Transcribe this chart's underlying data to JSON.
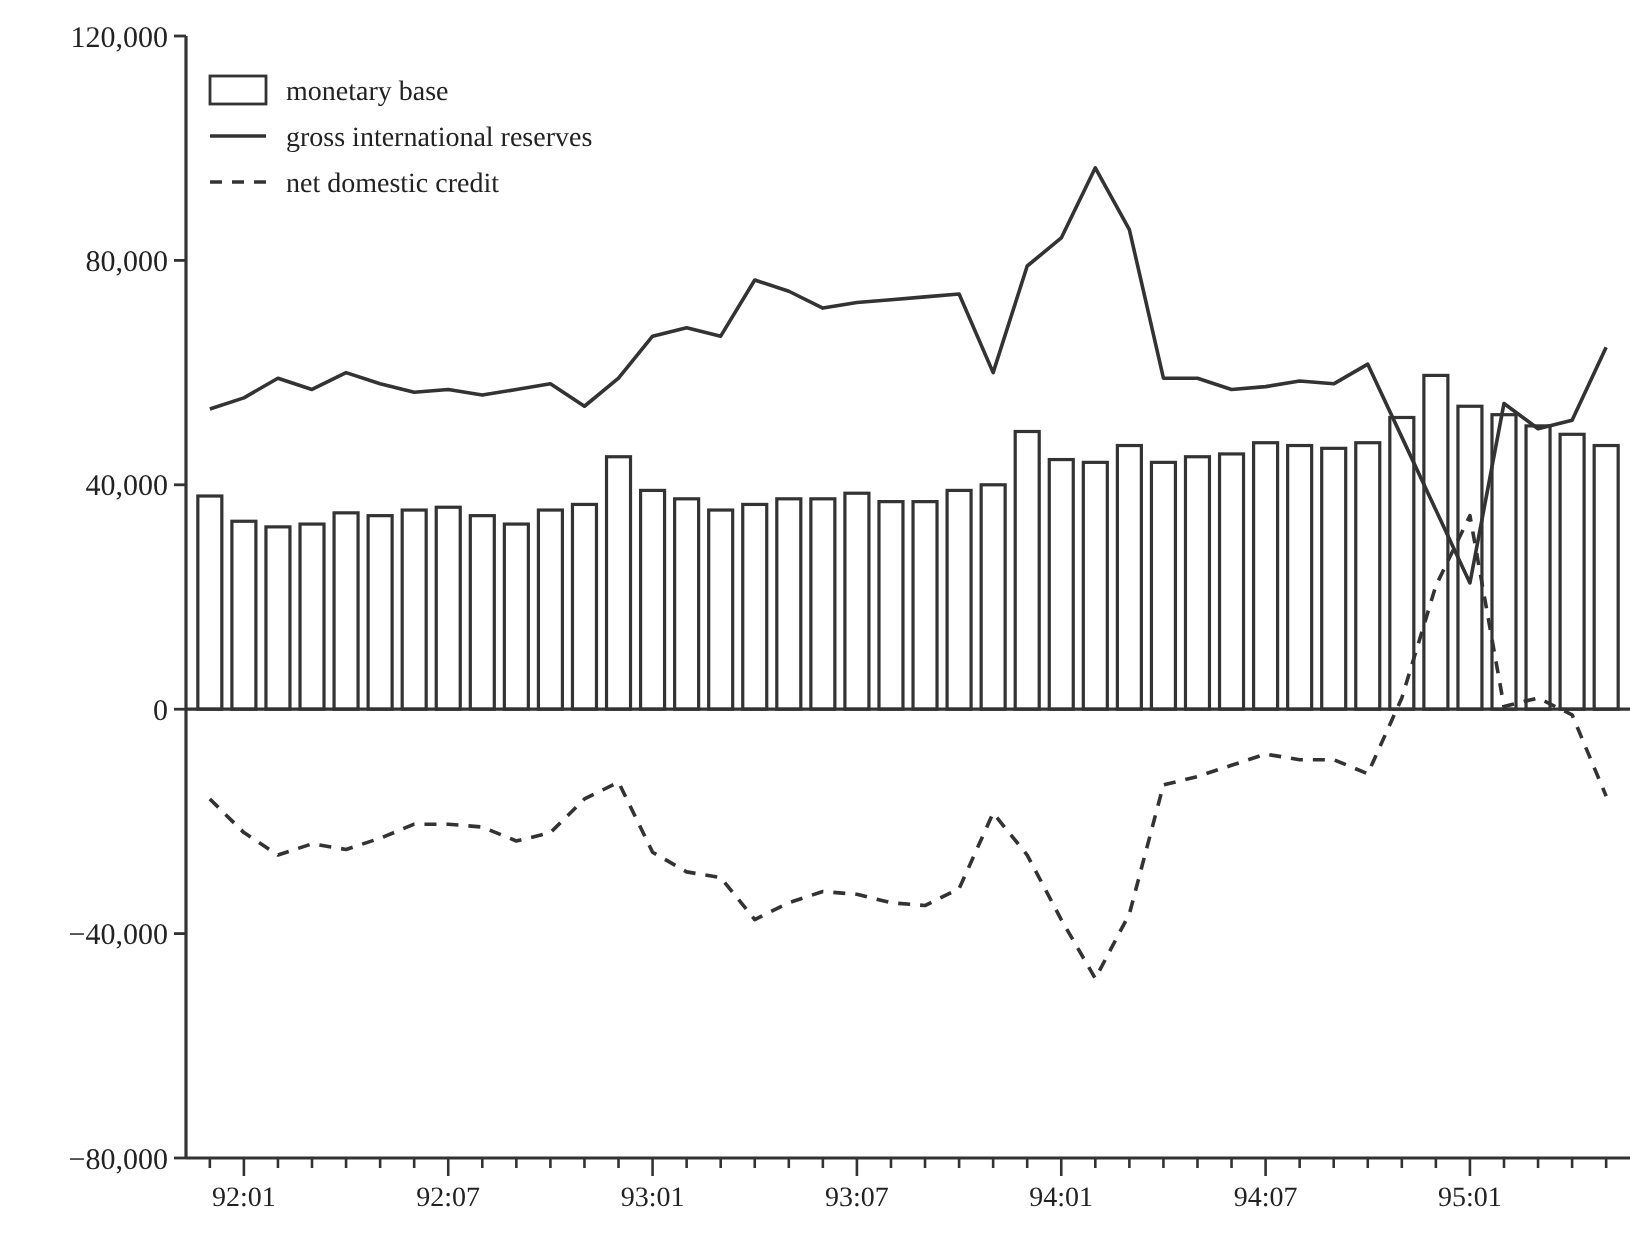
{
  "chart_data": {
    "type": "bar",
    "categories": [
      null,
      "92:01",
      null,
      null,
      null,
      null,
      null,
      "92:07",
      null,
      null,
      null,
      null,
      null,
      "93:01",
      null,
      null,
      null,
      null,
      null,
      "93:07",
      null,
      null,
      null,
      null,
      null,
      "94:01",
      null,
      null,
      null,
      null,
      null,
      "94:07",
      null,
      null,
      null,
      null,
      null,
      "95:01",
      null,
      null,
      null,
      null
    ],
    "series": [
      {
        "name": "monetary base",
        "color": "#333333",
        "values": [
          38000,
          33500,
          32500,
          33000,
          35000,
          34500,
          35500,
          36000,
          34500,
          33000,
          35500,
          36500,
          45000,
          39000,
          37500,
          35500,
          36500,
          37500,
          37500,
          38500,
          37000,
          37000,
          39000,
          40000,
          49500,
          44500,
          44000,
          47000,
          44000,
          45000,
          45500,
          47500,
          47000,
          46500,
          47500,
          52000,
          59500,
          54000,
          52500,
          50500,
          49000,
          47000
        ]
      },
      {
        "name": "gross international reserves",
        "type": "line",
        "line_style": "solid",
        "color": "#333333",
        "values": [
          53500,
          55500,
          59000,
          57000,
          60000,
          58000,
          56500,
          57000,
          56000,
          57000,
          58000,
          54000,
          59000,
          66500,
          68000,
          66500,
          76500,
          74500,
          71500,
          72500,
          73000,
          73500,
          74000,
          60000,
          79000,
          84000,
          96500,
          85500,
          59000,
          59000,
          57000,
          57500,
          58500,
          58000,
          61500,
          48500,
          35500,
          22500,
          54500,
          50000,
          51500,
          64500
        ]
      },
      {
        "name": "net domestic credit",
        "type": "line",
        "line_style": "dashed",
        "color": "#333333",
        "values": [
          -16000,
          -22000,
          -26000,
          -24000,
          -25000,
          -23000,
          -20500,
          -20500,
          -21000,
          -23500,
          -22000,
          -16000,
          -13000,
          -25500,
          -29000,
          -30000,
          -37500,
          -34500,
          -32500,
          -33000,
          -34500,
          -35000,
          -32000,
          -18500,
          -26000,
          -37500,
          -48000,
          -36500,
          -13500,
          -12000,
          -10000,
          -8000,
          -9000,
          -9000,
          -11500,
          2000,
          22000,
          34500,
          500,
          2000,
          -1000,
          -15500
        ]
      }
    ],
    "ylim": [
      -80000,
      120000
    ],
    "yticks": [
      {
        "value": -80000,
        "label": "−80,000"
      },
      {
        "value": -40000,
        "label": "−40,000"
      },
      0,
      {
        "value": 40000,
        "label": "40,000"
      },
      {
        "value": 80000,
        "label": "80,000"
      },
      {
        "value": 120000,
        "label": "120,000"
      }
    ],
    "ref_lines": [
      {
        "axis": "y",
        "value": 0,
        "color": "#333333"
      }
    ],
    "grid": false,
    "legend": "top left"
  }
}
